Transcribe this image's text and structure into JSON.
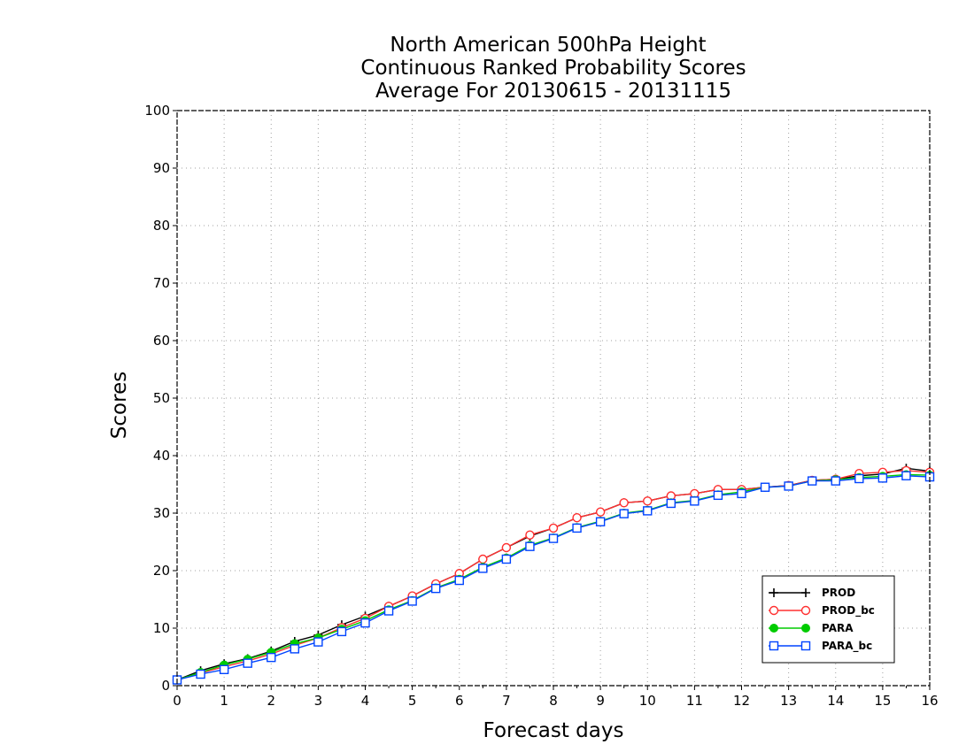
{
  "chart_data": {
    "type": "line",
    "title": [
      "North American 500hPa Height",
      "Continuous Ranked Probability Scores",
      "Average For 20130615 - 20131115"
    ],
    "xlabel": "Forecast days",
    "ylabel": "Scores",
    "xlim": [
      0,
      16
    ],
    "ylim": [
      0,
      100
    ],
    "xticks": [
      0,
      1,
      2,
      3,
      4,
      5,
      6,
      7,
      8,
      9,
      10,
      11,
      12,
      13,
      14,
      15,
      16
    ],
    "yticks": [
      0,
      10,
      20,
      30,
      40,
      50,
      60,
      70,
      80,
      90,
      100
    ],
    "grid": true,
    "legend_position": "bottom-right",
    "x": [
      0,
      0.5,
      1,
      1.5,
      2,
      2.5,
      3,
      3.5,
      4,
      4.5,
      5,
      5.5,
      6,
      6.5,
      7,
      7.5,
      8,
      8.5,
      9,
      9.5,
      10,
      10.5,
      11,
      11.5,
      12,
      12.5,
      13,
      13.5,
      14,
      14.5,
      15,
      15.5,
      16
    ],
    "series": [
      {
        "name": "PROD",
        "color": "#000000",
        "marker": "plus",
        "values": [
          1.0,
          2.6,
          3.8,
          4.7,
          6.0,
          7.7,
          8.8,
          10.6,
          12.1,
          13.8,
          15.6,
          17.7,
          19.5,
          22.0,
          24.0,
          26.0,
          27.4,
          29.2,
          30.2,
          31.8,
          32.1,
          33.0,
          33.4,
          34.1,
          34.1,
          34.5,
          34.8,
          35.7,
          35.9,
          36.5,
          36.8,
          37.8,
          37.3
        ]
      },
      {
        "name": "PROD_bc",
        "color": "#ff3030",
        "marker": "open-circle",
        "values": [
          1.0,
          2.2,
          3.3,
          4.3,
          5.5,
          7.0,
          8.3,
          10.1,
          11.7,
          13.8,
          15.6,
          17.7,
          19.5,
          22.0,
          24.0,
          26.2,
          27.4,
          29.2,
          30.2,
          31.8,
          32.1,
          33.0,
          33.4,
          34.1,
          34.1,
          34.5,
          34.8,
          35.7,
          35.9,
          36.9,
          37.1,
          37.4,
          37.1
        ]
      },
      {
        "name": "PARA",
        "color": "#00cc00",
        "marker": "filled-circle",
        "values": [
          1.0,
          2.3,
          3.6,
          4.6,
          5.8,
          7.3,
          8.3,
          9.8,
          11.3,
          13.2,
          14.8,
          17.0,
          18.5,
          20.6,
          22.2,
          24.4,
          25.7,
          27.5,
          28.6,
          30.0,
          30.5,
          31.8,
          32.2,
          33.2,
          33.7,
          34.5,
          34.7,
          35.6,
          35.8,
          36.2,
          36.4,
          36.7,
          36.6
        ]
      },
      {
        "name": "PARA_bc",
        "color": "#0044ff",
        "marker": "open-square",
        "values": [
          1.0,
          2.0,
          2.8,
          3.9,
          4.9,
          6.4,
          7.6,
          9.4,
          10.9,
          13.0,
          14.7,
          16.9,
          18.3,
          20.4,
          22.0,
          24.2,
          25.6,
          27.4,
          28.5,
          29.9,
          30.4,
          31.7,
          32.1,
          33.1,
          33.4,
          34.5,
          34.7,
          35.6,
          35.6,
          36.0,
          36.1,
          36.5,
          36.3
        ]
      }
    ]
  }
}
